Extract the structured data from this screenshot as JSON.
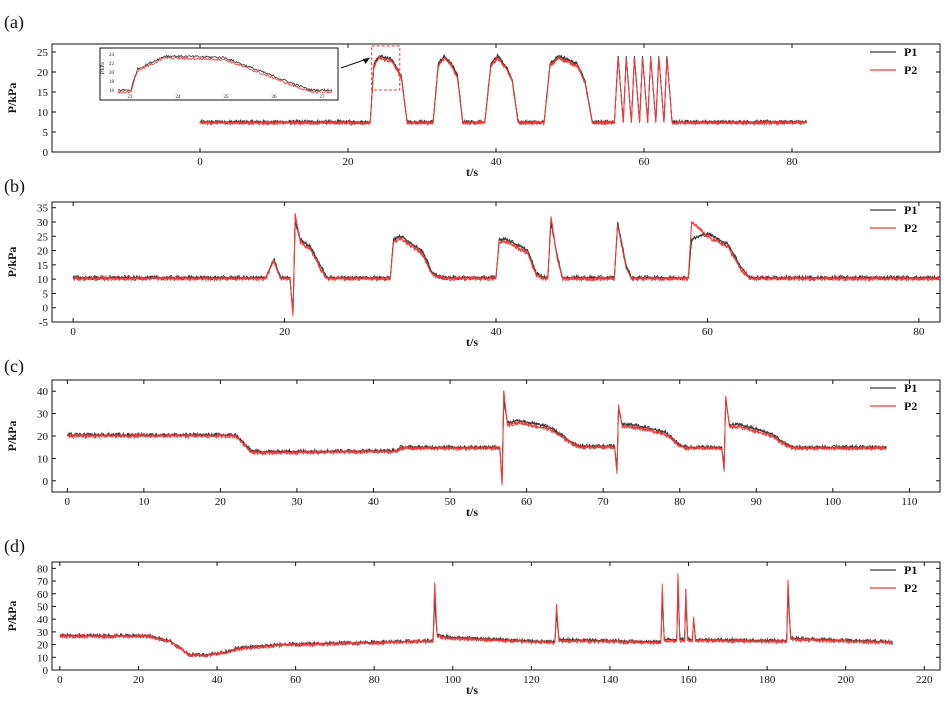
{
  "colors": {
    "P1": "#3a3a3a",
    "P2": "#ef3b3b"
  },
  "chart_data": [
    {
      "panel": "(a)",
      "type": "line",
      "ylabel": "P/kPa",
      "xlabel": "t/s",
      "xlim": [
        -20,
        100
      ],
      "ylim": [
        0,
        27
      ],
      "xticks": [
        0,
        20,
        40,
        60,
        80
      ],
      "yticks": [
        0,
        5,
        10,
        15,
        20,
        25
      ],
      "legend": [
        "P1",
        "P2"
      ],
      "legend_position": "top-right",
      "series": [
        {
          "name": "P1",
          "x": [
            0,
            23,
            23.5,
            24.2,
            26,
            27.2,
            28,
            31.5,
            32.2,
            33,
            34,
            34.8,
            35.5,
            38.5,
            39.3,
            40.2,
            41.5,
            42.2,
            43,
            46.5,
            47.3,
            48.5,
            51,
            52,
            53,
            56,
            56.5,
            57.2,
            57.6,
            58.3,
            58.7,
            59.4,
            59.8,
            60.5,
            60.9,
            61.6,
            62,
            62.7,
            63.1,
            63.8,
            64.2,
            82
          ],
          "y": [
            7.5,
            7.5,
            22,
            24,
            23,
            19,
            7.5,
            7.5,
            22,
            24,
            22,
            19,
            7.5,
            7.5,
            22,
            24,
            21,
            18,
            7.5,
            7.5,
            22,
            24,
            22,
            18,
            7.5,
            7.5,
            24,
            7.5,
            24,
            7.5,
            24,
            7.5,
            24,
            7.5,
            24,
            7.5,
            24,
            7.5,
            24,
            7.5,
            7.5,
            7.5
          ]
        },
        {
          "name": "P2",
          "x": [
            0,
            23,
            23.5,
            24.2,
            26,
            27.2,
            28,
            31.5,
            32.2,
            33,
            34,
            34.8,
            35.5,
            38.5,
            39.3,
            40.2,
            41.5,
            42.2,
            43,
            46.5,
            47.3,
            48.5,
            51,
            52,
            53,
            56,
            56.5,
            57.2,
            57.6,
            58.3,
            58.7,
            59.4,
            59.8,
            60.5,
            60.9,
            61.6,
            62,
            62.7,
            63.1,
            63.8,
            64.2,
            82
          ],
          "y": [
            7.3,
            7.3,
            21.5,
            23.5,
            22.5,
            18.5,
            7.3,
            7.3,
            21.5,
            23.5,
            21.5,
            18.5,
            7.3,
            7.3,
            21.5,
            23.5,
            20.5,
            17.5,
            7.3,
            7.3,
            21.5,
            23.5,
            21.5,
            17.5,
            7.3,
            7.3,
            23.5,
            7.3,
            23.5,
            7.3,
            23.5,
            7.3,
            23.5,
            7.3,
            23.5,
            7.3,
            23.5,
            7.3,
            23.5,
            7.3,
            7.3,
            7.3
          ]
        }
      ],
      "inset": {
        "ylabel": "P/kPa",
        "xticks": [
          "23",
          "24",
          "25",
          "26",
          "27"
        ],
        "yticks": [
          "24",
          "22",
          "20",
          "18",
          "16"
        ]
      }
    },
    {
      "panel": "(b)",
      "type": "line",
      "ylabel": "P/kPa",
      "xlabel": "t/s",
      "xlim": [
        -2,
        82
      ],
      "ylim": [
        -5,
        37
      ],
      "xticks": [
        0,
        20,
        40,
        60,
        80
      ],
      "yticks": [
        -5,
        0,
        5,
        10,
        15,
        20,
        25,
        30,
        35
      ],
      "legend": [
        "P1",
        "P2"
      ],
      "legend_position": "top-right",
      "series": [
        {
          "name": "P1",
          "x": [
            0,
            18.2,
            19,
            19.6,
            20.5,
            20.8,
            21,
            21.5,
            22.5,
            23.5,
            24,
            30,
            30.3,
            31,
            33,
            34,
            35,
            40,
            40.3,
            41,
            43,
            43.8,
            44.6,
            44.9,
            45.2,
            45.8,
            46.3,
            51.2,
            51.5,
            52.3,
            52.8,
            58.2,
            58.5,
            60,
            62,
            63.2,
            64,
            82
          ],
          "y": [
            10.5,
            10.5,
            17,
            10.5,
            10.5,
            -2,
            30,
            24,
            21,
            14,
            10.5,
            10.5,
            24,
            25,
            20,
            12,
            10.5,
            10.5,
            24,
            24,
            20,
            12,
            10.5,
            10.5,
            30,
            18,
            10.5,
            10.5,
            30,
            15,
            10.5,
            10.5,
            24,
            26,
            22,
            14,
            10.5,
            10.5
          ]
        },
        {
          "name": "P2",
          "x": [
            0,
            18.2,
            19,
            19.6,
            20.5,
            20.8,
            21,
            21.5,
            22.5,
            23.5,
            24,
            30,
            30.3,
            31,
            33,
            34,
            35,
            40,
            40.3,
            41,
            43,
            43.8,
            44.6,
            44.9,
            45.2,
            45.8,
            46.3,
            51.2,
            51.5,
            52.3,
            52.8,
            58.2,
            58.5,
            60,
            62,
            63.2,
            64,
            82
          ],
          "y": [
            10.2,
            10.2,
            16.5,
            10.2,
            10.2,
            -3,
            33,
            23,
            20,
            13,
            10.2,
            10.2,
            23,
            24,
            19,
            11.5,
            10.2,
            10.2,
            23,
            23,
            19,
            11.5,
            10.2,
            10.2,
            32,
            17,
            10.2,
            10.2,
            29,
            14,
            10.2,
            10.2,
            30,
            25,
            21,
            13,
            10.2,
            10.2
          ]
        }
      ]
    },
    {
      "panel": "(c)",
      "type": "line",
      "ylabel": "P/kPa",
      "xlabel": "t/s",
      "xlim": [
        -2,
        114
      ],
      "ylim": [
        -5,
        45
      ],
      "xticks": [
        0,
        10,
        20,
        30,
        40,
        50,
        60,
        70,
        80,
        90,
        100,
        110
      ],
      "yticks": [
        0,
        10,
        20,
        30,
        40
      ],
      "legend": [
        "P1",
        "P2"
      ],
      "legend_position": "top-right",
      "series": [
        {
          "name": "P1",
          "x": [
            0,
            22,
            24,
            25,
            43,
            43.5,
            56.5,
            56.8,
            57,
            57.5,
            59,
            63,
            66,
            67,
            71.5,
            71.8,
            72,
            72.5,
            74,
            78,
            80,
            81,
            85.5,
            85.8,
            86,
            86.5,
            88,
            92,
            94,
            95,
            107
          ],
          "y": [
            20.5,
            20.5,
            13.5,
            13,
            13.5,
            15,
            15,
            -1,
            36,
            26,
            27,
            24,
            17,
            15.5,
            15.5,
            4,
            32,
            25,
            25,
            22,
            16,
            15,
            15,
            5,
            36,
            25,
            25,
            21,
            16,
            15,
            15
          ]
        },
        {
          "name": "P2",
          "x": [
            0,
            22,
            24,
            25,
            43,
            43.5,
            56.5,
            56.8,
            57,
            57.5,
            59,
            63,
            66,
            67,
            71.5,
            71.8,
            72,
            72.5,
            74,
            78,
            80,
            81,
            85.5,
            85.8,
            86,
            86.5,
            88,
            92,
            94,
            95,
            107
          ],
          "y": [
            20,
            20,
            13,
            12.5,
            13,
            14.5,
            14.5,
            -2,
            40,
            25,
            26,
            23,
            16.5,
            15,
            15,
            3,
            34,
            24,
            24,
            21,
            15.5,
            14.5,
            14.5,
            4,
            38,
            24,
            24,
            20,
            15.5,
            14.5,
            14.5
          ]
        }
      ]
    },
    {
      "panel": "(d)",
      "type": "line",
      "ylabel": "P/kPa",
      "xlabel": "t/s",
      "xlim": [
        -2,
        224
      ],
      "ylim": [
        0,
        85
      ],
      "xticks": [
        0,
        20,
        40,
        60,
        80,
        100,
        120,
        140,
        160,
        180,
        200,
        220
      ],
      "yticks": [
        0,
        10,
        20,
        30,
        40,
        50,
        60,
        70,
        80
      ],
      "legend": [
        "P1",
        "P2"
      ],
      "legend_position": "top-right",
      "series": [
        {
          "name": "P1",
          "x": [
            0,
            22,
            28,
            33,
            37,
            42,
            45,
            56,
            95,
            95.4,
            96,
            98,
            126,
            126.4,
            127,
            153,
            153.3,
            153.8,
            157,
            157.3,
            157.8,
            159,
            159.3,
            159.8,
            161,
            161.3,
            161.8,
            185,
            185.3,
            186,
            212
          ],
          "y": [
            27,
            27,
            23,
            12,
            12,
            14,
            17,
            20,
            23,
            55,
            28,
            26,
            22,
            45,
            24,
            22,
            58,
            24,
            24,
            65,
            24,
            24,
            55,
            24,
            24,
            40,
            24,
            23,
            60,
            25,
            22
          ]
        },
        {
          "name": "P2",
          "x": [
            0,
            22,
            28,
            33,
            37,
            42,
            45,
            56,
            95,
            95.4,
            96,
            98,
            126,
            126.4,
            127,
            153,
            153.3,
            153.8,
            157,
            157.3,
            157.8,
            159,
            159.3,
            159.8,
            161,
            161.3,
            161.8,
            185,
            185.3,
            186,
            212
          ],
          "y": [
            26.5,
            26.5,
            22.5,
            11.5,
            11.5,
            13.5,
            16.5,
            19.5,
            22.5,
            69,
            27,
            25,
            21.5,
            52,
            23,
            21.5,
            68,
            23,
            23,
            76,
            23,
            23,
            64,
            23,
            23,
            42,
            23,
            22.5,
            71,
            24,
            21.5
          ]
        }
      ]
    }
  ]
}
